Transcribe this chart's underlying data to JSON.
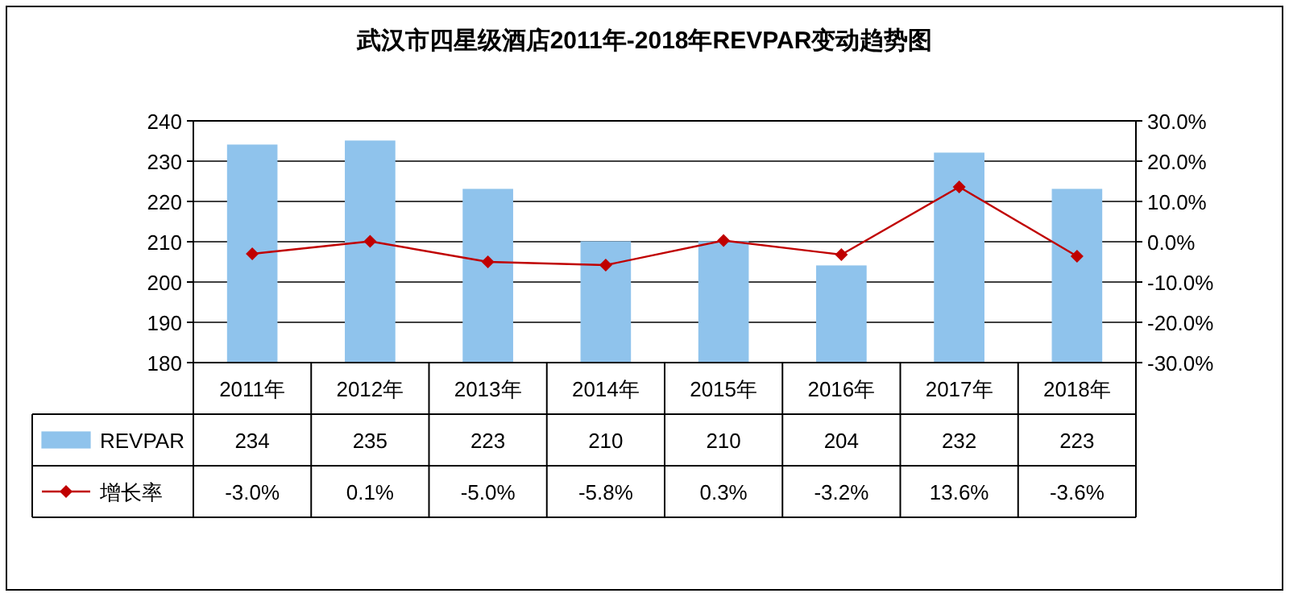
{
  "chart_data": {
    "type": "bar",
    "title": "武汉市四星级酒店2011年-2018年REVPAR变动趋势图",
    "categories": [
      "2011年",
      "2012年",
      "2013年",
      "2014年",
      "2015年",
      "2016年",
      "2017年",
      "2018年"
    ],
    "series": [
      {
        "name": "REVPAR",
        "color": "#8fc3ec",
        "values": [
          234,
          235,
          223,
          210,
          210,
          204,
          232,
          223
        ],
        "value_labels": [
          "234",
          "235",
          "223",
          "210",
          "210",
          "204",
          "232",
          "223"
        ]
      },
      {
        "name": "增长率",
        "type": "line",
        "axis": "y2",
        "color": "#c00000",
        "values": [
          -3.0,
          0.1,
          -5.0,
          -5.8,
          0.3,
          -3.2,
          13.6,
          -3.6
        ],
        "value_labels": [
          "-3.0%",
          "0.1%",
          "-5.0%",
          "-5.8%",
          "0.3%",
          "-3.2%",
          "13.6%",
          "-3.6%"
        ]
      }
    ],
    "ylim": [
      180,
      240
    ],
    "yticks": [
      180,
      190,
      200,
      210,
      220,
      230,
      240
    ],
    "y2lim": [
      -30,
      30
    ],
    "y2ticks": [
      {
        "value": -30,
        "label": "-30.0%"
      },
      {
        "value": -20,
        "label": "-20.0%"
      },
      {
        "value": -10,
        "label": "-10.0%"
      },
      {
        "value": 0,
        "label": "0.0%"
      },
      {
        "value": 10,
        "label": "10.0%"
      },
      {
        "value": 20,
        "label": "20.0%"
      },
      {
        "value": 30,
        "label": "30.0%"
      }
    ],
    "grid": "y",
    "legend": "bottom",
    "marker": "diamond",
    "line_style": "solid"
  }
}
